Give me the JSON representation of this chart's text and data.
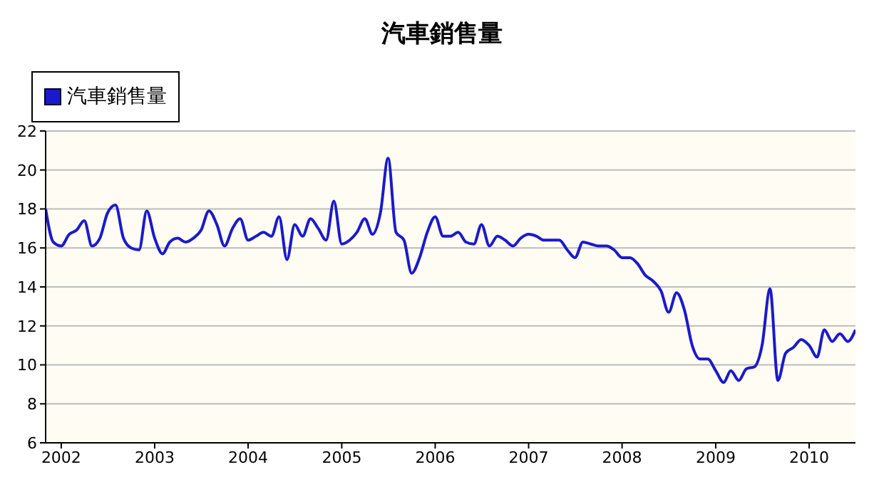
{
  "chart_data": {
    "type": "line",
    "title": "汽車銷售量",
    "x": [
      "2001-11",
      "2001-12",
      "2002-01",
      "2002-02",
      "2002-03",
      "2002-04",
      "2002-05",
      "2002-06",
      "2002-07",
      "2002-08",
      "2002-09",
      "2002-10",
      "2002-11",
      "2002-12",
      "2003-01",
      "2003-02",
      "2003-03",
      "2003-04",
      "2003-05",
      "2003-06",
      "2003-07",
      "2003-08",
      "2003-09",
      "2003-10",
      "2003-11",
      "2003-12",
      "2004-01",
      "2004-02",
      "2004-03",
      "2004-04",
      "2004-05",
      "2004-06",
      "2004-07",
      "2004-08",
      "2004-09",
      "2004-10",
      "2004-11",
      "2004-12",
      "2005-01",
      "2005-02",
      "2005-03",
      "2005-04",
      "2005-05",
      "2005-06",
      "2005-07",
      "2005-08",
      "2005-09",
      "2005-10",
      "2005-11",
      "2005-12",
      "2006-01",
      "2006-02",
      "2006-03",
      "2006-04",
      "2006-05",
      "2006-06",
      "2006-07",
      "2006-08",
      "2006-09",
      "2006-10",
      "2006-11",
      "2006-12",
      "2007-01",
      "2007-02",
      "2007-03",
      "2007-04",
      "2007-05",
      "2007-06",
      "2007-07",
      "2007-08",
      "2007-09",
      "2007-10",
      "2007-11",
      "2007-12",
      "2008-01",
      "2008-02",
      "2008-03",
      "2008-04",
      "2008-05",
      "2008-06",
      "2008-07",
      "2008-08",
      "2008-09",
      "2008-10",
      "2008-11",
      "2008-12",
      "2009-01",
      "2009-02",
      "2009-03",
      "2009-04",
      "2009-05",
      "2009-06",
      "2009-07",
      "2009-08",
      "2009-09",
      "2009-10",
      "2009-11",
      "2009-12",
      "2010-01",
      "2010-02",
      "2010-03",
      "2010-04",
      "2010-05",
      "2010-06",
      "2010-07"
    ],
    "series": [
      {
        "name": "汽車銷售量",
        "color": "#1a1acc",
        "values": [
          18.0,
          16.3,
          16.1,
          16.7,
          16.9,
          17.4,
          16.1,
          16.5,
          17.8,
          18.2,
          16.5,
          16.0,
          15.9,
          17.9,
          16.5,
          15.7,
          16.3,
          16.5,
          16.3,
          16.5,
          16.9,
          17.9,
          17.2,
          16.1,
          17.0,
          17.5,
          16.4,
          16.6,
          16.8,
          16.6,
          17.6,
          15.4,
          17.2,
          16.6,
          17.5,
          17.0,
          16.4,
          18.4,
          16.2,
          16.4,
          16.8,
          17.5,
          16.7,
          17.8,
          20.6,
          16.8,
          16.4,
          14.7,
          15.5,
          16.8,
          17.6,
          16.6,
          16.6,
          16.8,
          16.3,
          16.2,
          17.2,
          16.1,
          16.6,
          16.4,
          16.1,
          16.5,
          16.7,
          16.6,
          16.4,
          16.4,
          16.4,
          15.9,
          15.5,
          16.3,
          16.2,
          16.1,
          16.1,
          15.9,
          15.5,
          15.5,
          15.2,
          14.6,
          14.3,
          13.8,
          12.7,
          13.7,
          12.8,
          11.0,
          10.3,
          10.3,
          9.7,
          9.1,
          9.7,
          9.2,
          9.8,
          9.9,
          11.0,
          13.9,
          9.2,
          10.6,
          10.9,
          11.3,
          11.0,
          10.4,
          11.8,
          11.2,
          11.6,
          11.2,
          11.8
        ]
      }
    ],
    "xlim": [
      "2001-11",
      "2010-07"
    ],
    "xticks": [
      "2002",
      "2003",
      "2004",
      "2005",
      "2006",
      "2007",
      "2008",
      "2009",
      "2010"
    ],
    "ylim": [
      6,
      22
    ],
    "yticks": [
      6,
      8,
      10,
      12,
      14,
      16,
      18,
      20,
      22
    ],
    "grid": "y",
    "legend": "top left",
    "marker": "none",
    "line_style": "solid"
  }
}
